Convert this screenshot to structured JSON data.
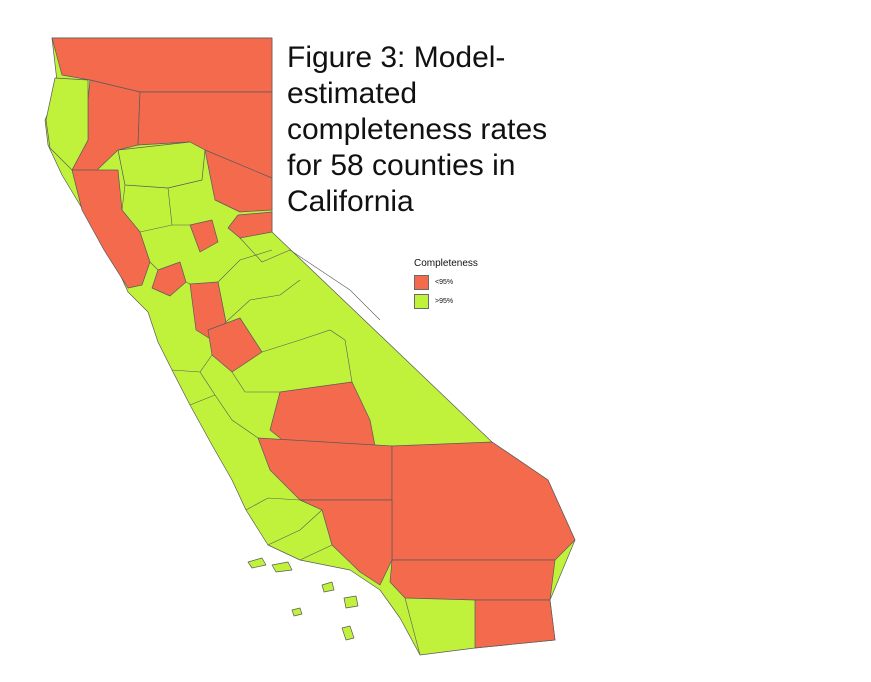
{
  "figure": {
    "title": "Figure 3: Model-\nestimated\ncompleteness rates\nfor 58 counties in\nCalifornia"
  },
  "legend": {
    "title": "Completeness",
    "items": [
      {
        "label": "<95%",
        "class": "low",
        "color": "#f36a4c"
      },
      {
        "label": ">95%",
        "class": "high",
        "color": "#c0f23c"
      }
    ]
  },
  "map": {
    "state": "California",
    "county_count": 58,
    "colors": {
      "low": "#f36a4c",
      "high": "#c0f23c",
      "border": "#5a5a5a"
    }
  }
}
